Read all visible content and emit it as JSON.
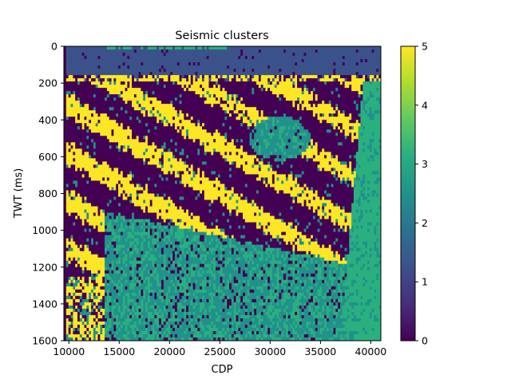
{
  "chart_data": {
    "type": "heatmap",
    "title": "Seismic clusters",
    "xlabel": "CDP",
    "ylabel": "TWT (ms)",
    "xlim": [
      9500,
      41000
    ],
    "ylim": [
      1600,
      0
    ],
    "x_ticks": [
      10000,
      15000,
      20000,
      25000,
      30000,
      35000,
      40000
    ],
    "y_ticks": [
      0,
      200,
      400,
      600,
      800,
      1000,
      1200,
      1400,
      1600
    ],
    "grid": false,
    "colormap": "viridis",
    "colorbar": {
      "range": [
        0,
        5
      ],
      "ticks": [
        0,
        1,
        2,
        3,
        4,
        5
      ]
    },
    "cluster_colors": [
      "#440154",
      "#3b528b",
      "#21918c",
      "#2ab07f",
      "#fde725"
    ],
    "regions": [
      {
        "cluster": 1,
        "description": "shallow band",
        "cdp_range": [
          9500,
          41000
        ],
        "twt_range": [
          0,
          180
        ]
      },
      {
        "cluster": 3,
        "description": "near-surface strip",
        "cdp_range": [
          13000,
          26000
        ],
        "twt_range": [
          0,
          30
        ]
      },
      {
        "cluster": 4,
        "description": "dipping reflectors",
        "cdp_range": [
          9500,
          38000
        ],
        "twt_range": [
          150,
          1400
        ]
      },
      {
        "cluster": 0,
        "description": "dipping troughs",
        "cdp_range": [
          9500,
          40000
        ],
        "twt_range": [
          150,
          1300
        ]
      },
      {
        "cluster": 2,
        "description": "lower zone",
        "cdp_range": [
          13000,
          38000
        ],
        "twt_range": [
          1000,
          1600
        ]
      },
      {
        "cluster": 3,
        "description": "eastern flank",
        "cdp_range": [
          37000,
          41000
        ],
        "twt_range": [
          500,
          1600
        ]
      },
      {
        "cluster": 2,
        "description": "lens",
        "cdp_range": [
          28000,
          34000
        ],
        "twt_range": [
          380,
          620
        ]
      }
    ]
  }
}
